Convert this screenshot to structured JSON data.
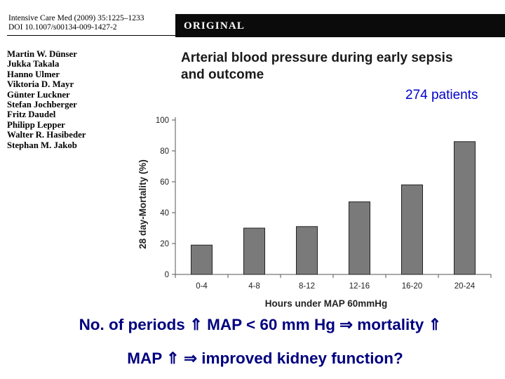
{
  "citation": {
    "line1": "Intensive Care Med (2009) 35:1225–1233",
    "line2": "DOI 10.1007/s00134-009-1427-2"
  },
  "banner": {
    "label": "ORIGINAL"
  },
  "authors": [
    "Martin W. Dünser",
    "Jukka Takala",
    "Hanno Ulmer",
    "Viktoria D. Mayr",
    "Günter Luckner",
    "Stefan Jochberger",
    "Fritz Daudel",
    "Philipp Lepper",
    "Walter R. Hasibeder",
    "Stephan M. Jakob"
  ],
  "article": {
    "title_line1": "Arterial blood pressure during early sepsis",
    "title_line2": "and outcome"
  },
  "annotation": {
    "patients": "274 patients"
  },
  "chart_data": {
    "type": "bar",
    "categories": [
      "0-4",
      "4-8",
      "8-12",
      "12-16",
      "16-20",
      "20-24"
    ],
    "values": [
      19,
      30,
      31,
      47,
      58,
      86
    ],
    "xlabel": "Hours under MAP 60mmHg",
    "ylabel": "28 day-Mortality (%)",
    "ylim": [
      0,
      100
    ],
    "yticks": [
      0,
      20,
      40,
      60,
      80,
      100
    ],
    "grid": false,
    "bar_color": "#7a7a7a"
  },
  "notes": {
    "line1": "No. of periods ⇑ MAP < 60 mm Hg ⇒ mortality ⇑",
    "line2": "MAP ⇑ ⇒ improved kidney function?"
  },
  "colors": {
    "note_text": "#000080",
    "patients_text": "#0000cc",
    "banner_bg": "#0b0b0b"
  }
}
